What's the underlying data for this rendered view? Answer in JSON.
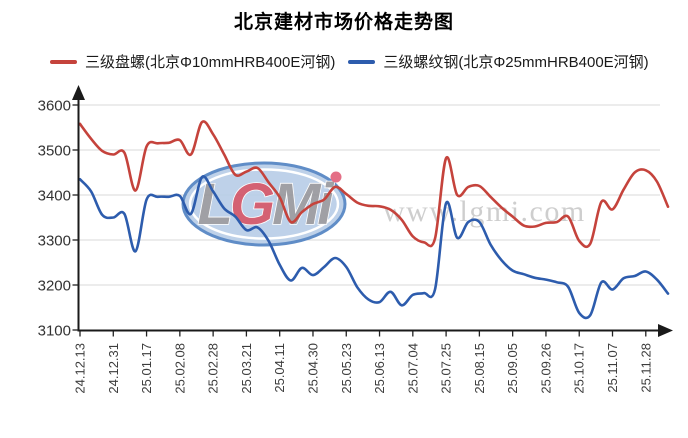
{
  "title": "北京建材市场价格走势图",
  "legend": [
    {
      "label": "三级盘螺(北京Φ10mmHRB400E河钢)",
      "color": "#c5433c"
    },
    {
      "label": "三级螺纹钢(北京Φ25mmHRB400E河钢)",
      "color": "#2d5cad"
    }
  ],
  "watermark": {
    "logo_part1": "L",
    "logo_part2": "G",
    "logo_part3": "Mi",
    "url_text": "www.lgmi.com",
    "ellipse_fill": "#b7cde7",
    "ellipse_stroke": "#4f81c2",
    "logo_gray": "#96969c",
    "logo_red": "#d05064",
    "url_color": "#c9c9c9"
  },
  "chart_data": {
    "type": "line",
    "title": "北京建材市场价格走势图",
    "x_tick_labels": [
      "24.12.13",
      "24.12.31",
      "25.01.17",
      "25.02.08",
      "25.02.28",
      "25.03.21",
      "25.04.11",
      "25.04.30",
      "25.05.23",
      "25.06.13",
      "25.07.04",
      "25.07.25",
      "25.08.15",
      "25.09.05",
      "25.09.26",
      "25.10.17",
      "25.11.07",
      "25.11.28"
    ],
    "points_per_tick": 3,
    "y_ticks": [
      3100,
      3200,
      3300,
      3400,
      3500,
      3600
    ],
    "ylim": [
      3100,
      3600
    ],
    "grid": true,
    "legend_position": "top",
    "series": [
      {
        "name": "三级盘螺(北京Φ10mmHRB400E河钢)",
        "color": "#c5433c",
        "values": [
          3558,
          3525,
          3498,
          3490,
          3494,
          3410,
          3508,
          3515,
          3516,
          3522,
          3490,
          3562,
          3535,
          3490,
          3445,
          3452,
          3460,
          3428,
          3395,
          3340,
          3362,
          3380,
          3390,
          3418,
          3402,
          3383,
          3376,
          3375,
          3367,
          3345,
          3308,
          3295,
          3303,
          3482,
          3400,
          3418,
          3420,
          3396,
          3372,
          3352,
          3332,
          3330,
          3338,
          3340,
          3352,
          3298,
          3292,
          3385,
          3368,
          3412,
          3450,
          3455,
          3430,
          3374
        ]
      },
      {
        "name": "三级螺纹钢(北京Φ25mmHRB400E河钢)",
        "color": "#2d5cad",
        "values": [
          3435,
          3408,
          3356,
          3350,
          3358,
          3275,
          3390,
          3396,
          3396,
          3398,
          3358,
          3440,
          3408,
          3370,
          3352,
          3322,
          3328,
          3298,
          3245,
          3210,
          3238,
          3222,
          3240,
          3260,
          3240,
          3195,
          3168,
          3162,
          3185,
          3155,
          3178,
          3182,
          3190,
          3382,
          3305,
          3340,
          3340,
          3290,
          3255,
          3232,
          3224,
          3216,
          3212,
          3206,
          3196,
          3138,
          3133,
          3206,
          3190,
          3215,
          3220,
          3230,
          3212,
          3181
        ]
      }
    ]
  }
}
